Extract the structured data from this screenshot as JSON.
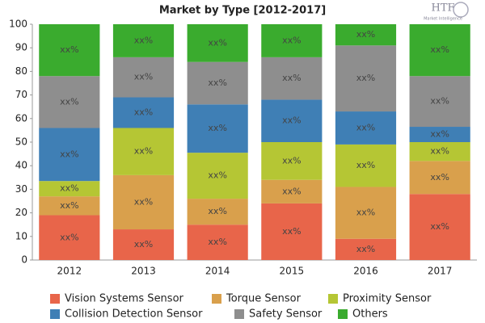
{
  "chart_data": {
    "type": "stacked_bar",
    "title": "Market by Type [2012-2017]",
    "categories": [
      "2012",
      "2013",
      "2014",
      "2015",
      "2016",
      "2017"
    ],
    "series": [
      {
        "name": "Vision Systems Sensor",
        "color": "#e8654a",
        "values": [
          19,
          13,
          15,
          24,
          9,
          28
        ],
        "value_labels": [
          "xx%",
          "xx%",
          "xx%",
          "xx%",
          "xx%",
          "xx%"
        ]
      },
      {
        "name": "Torque Sensor",
        "color": "#d9a04c",
        "values": [
          8,
          23,
          11,
          10,
          22,
          14
        ],
        "value_labels": [
          "xx%",
          "xx%",
          "xx%",
          "xx%",
          "xx%",
          "xx%"
        ]
      },
      {
        "name": "Proximity Sensor",
        "color": "#b5c634",
        "values": [
          6.5,
          20,
          19.5,
          16,
          18,
          8
        ],
        "value_labels": [
          "xx%",
          "xx%",
          "xx%",
          "xx%",
          "xx%",
          "xx%"
        ]
      },
      {
        "name": "Collision Detection Sensor",
        "color": "#3f7fb5",
        "values": [
          22.5,
          13,
          20.5,
          18,
          14,
          6.5
        ],
        "value_labels": [
          "xx%",
          "xx%",
          "xx%",
          "xx%",
          "xx%",
          "xx%"
        ]
      },
      {
        "name": "Safety Sensor",
        "color": "#8e8e8e",
        "values": [
          22,
          17,
          18,
          18,
          28,
          21.5
        ],
        "value_labels": [
          "xx%",
          "xx%",
          "xx%",
          "xx%",
          "xx%",
          "xx%"
        ]
      },
      {
        "name": "Others",
        "color": "#3aab2e",
        "values": [
          22,
          14,
          16,
          14,
          9,
          22
        ],
        "value_labels": [
          "xx%",
          "xx%",
          "xx%",
          "xx%",
          "xx%",
          "xx%"
        ]
      }
    ],
    "ylim": [
      0,
      100
    ],
    "yticks": [
      0,
      10,
      20,
      30,
      40,
      50,
      60,
      70,
      80,
      90,
      100
    ],
    "grid": false
  },
  "logo": {
    "brand": "HTF",
    "tagline": "Market Intelligence"
  }
}
